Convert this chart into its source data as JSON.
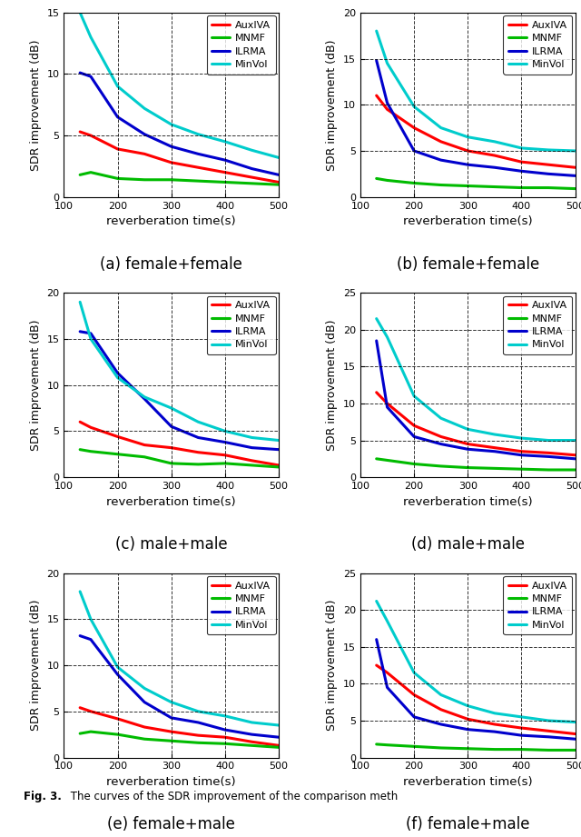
{
  "x": [
    130,
    150,
    200,
    250,
    300,
    350,
    400,
    450,
    500
  ],
  "subplots": [
    {
      "title": "(a) female+female",
      "ylim": [
        0,
        15
      ],
      "yticks": [
        0,
        5,
        10,
        15
      ],
      "xticks": [
        100,
        200,
        300,
        400,
        500
      ],
      "AuxIVA": [
        5.3,
        5.0,
        3.9,
        3.5,
        2.8,
        2.4,
        2.0,
        1.6,
        1.2
      ],
      "MNMF": [
        1.8,
        2.0,
        1.5,
        1.4,
        1.4,
        1.3,
        1.2,
        1.1,
        1.0
      ],
      "ILRMA": [
        10.1,
        9.8,
        6.5,
        5.1,
        4.1,
        3.5,
        3.0,
        2.3,
        1.8
      ],
      "MinVol": [
        15.0,
        13.0,
        9.0,
        7.2,
        5.9,
        5.1,
        4.5,
        3.8,
        3.2
      ]
    },
    {
      "title": "(b) female+female",
      "ylim": [
        0,
        20
      ],
      "yticks": [
        0,
        5,
        10,
        15,
        20
      ],
      "xticks": [
        100,
        200,
        300,
        400,
        500
      ],
      "AuxIVA": [
        11.0,
        9.5,
        7.5,
        6.0,
        5.0,
        4.5,
        3.8,
        3.5,
        3.2
      ],
      "MNMF": [
        2.0,
        1.8,
        1.5,
        1.3,
        1.2,
        1.1,
        1.0,
        1.0,
        0.9
      ],
      "ILRMA": [
        14.8,
        10.2,
        5.0,
        4.0,
        3.5,
        3.2,
        2.8,
        2.5,
        2.3
      ],
      "MinVol": [
        18.0,
        14.5,
        9.8,
        7.5,
        6.5,
        6.0,
        5.3,
        5.1,
        5.0
      ]
    },
    {
      "title": "(c) male+male",
      "ylim": [
        0,
        20
      ],
      "yticks": [
        0,
        5,
        10,
        15,
        20
      ],
      "xticks": [
        100,
        200,
        300,
        400,
        500
      ],
      "AuxIVA": [
        6.0,
        5.4,
        4.4,
        3.5,
        3.2,
        2.7,
        2.4,
        1.8,
        1.3
      ],
      "MNMF": [
        3.0,
        2.8,
        2.5,
        2.2,
        1.5,
        1.4,
        1.5,
        1.3,
        1.1
      ],
      "ILRMA": [
        15.8,
        15.6,
        11.3,
        8.5,
        5.5,
        4.3,
        3.8,
        3.2,
        3.0
      ],
      "MinVol": [
        19.0,
        15.0,
        10.8,
        8.7,
        7.5,
        6.0,
        5.0,
        4.3,
        4.0
      ]
    },
    {
      "title": "(d) male+male",
      "ylim": [
        0,
        25
      ],
      "yticks": [
        0,
        5,
        10,
        15,
        20,
        25
      ],
      "xticks": [
        100,
        200,
        300,
        400,
        500
      ],
      "AuxIVA": [
        11.5,
        10.0,
        7.0,
        5.5,
        4.5,
        4.0,
        3.5,
        3.3,
        3.0
      ],
      "MNMF": [
        2.5,
        2.3,
        1.8,
        1.5,
        1.3,
        1.2,
        1.1,
        1.0,
        1.0
      ],
      "ILRMA": [
        18.5,
        9.5,
        5.5,
        4.5,
        3.8,
        3.5,
        3.0,
        2.8,
        2.5
      ],
      "MinVol": [
        21.5,
        19.0,
        11.0,
        8.0,
        6.5,
        5.8,
        5.3,
        5.0,
        5.0
      ]
    },
    {
      "title": "(e) female+male",
      "ylim": [
        0,
        20
      ],
      "yticks": [
        0,
        5,
        10,
        15,
        20
      ],
      "xticks": [
        100,
        200,
        300,
        400,
        500
      ],
      "AuxIVA": [
        5.4,
        5.0,
        4.2,
        3.3,
        2.8,
        2.4,
        2.2,
        1.7,
        1.3
      ],
      "MNMF": [
        2.6,
        2.8,
        2.5,
        2.0,
        1.8,
        1.6,
        1.5,
        1.3,
        1.1
      ],
      "ILRMA": [
        13.2,
        12.8,
        9.0,
        6.0,
        4.3,
        3.8,
        3.0,
        2.5,
        2.2
      ],
      "MinVol": [
        18.0,
        15.0,
        9.8,
        7.5,
        6.0,
        5.0,
        4.5,
        3.8,
        3.5
      ]
    },
    {
      "title": "(f) female+male",
      "ylim": [
        0,
        25
      ],
      "yticks": [
        0,
        5,
        10,
        15,
        20,
        25
      ],
      "xticks": [
        100,
        200,
        300,
        400,
        500
      ],
      "AuxIVA": [
        12.5,
        11.5,
        8.5,
        6.5,
        5.2,
        4.5,
        4.0,
        3.6,
        3.2
      ],
      "MNMF": [
        1.8,
        1.7,
        1.5,
        1.3,
        1.2,
        1.1,
        1.1,
        1.0,
        1.0
      ],
      "ILRMA": [
        16.0,
        9.5,
        5.5,
        4.5,
        3.8,
        3.5,
        3.0,
        2.8,
        2.5
      ],
      "MinVol": [
        21.2,
        18.5,
        11.5,
        8.5,
        7.0,
        6.0,
        5.5,
        5.0,
        4.8
      ]
    }
  ],
  "colors": {
    "AuxIVA": "#ff0000",
    "MNMF": "#00bb00",
    "ILRMA": "#0000cc",
    "MinVol": "#00cccc"
  },
  "linewidth": 2.2,
  "xlabel": "reverberation time(s)",
  "ylabel": "SDR improvement (dB)",
  "figcaption": "Fig. 3.  The curves of the SDR improvement of the comparison meth"
}
